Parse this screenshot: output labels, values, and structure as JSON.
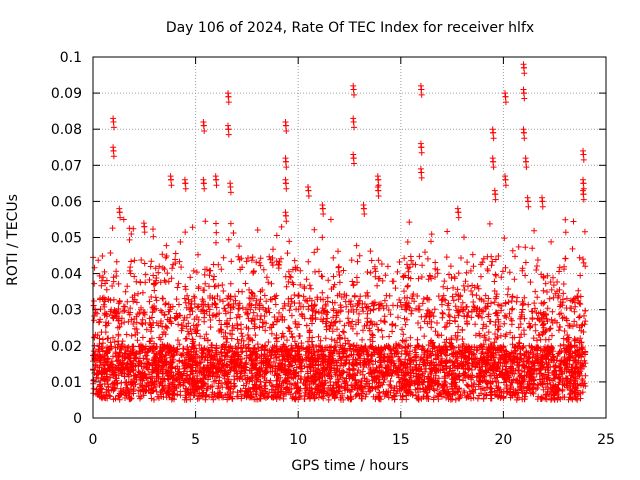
{
  "chart_data": {
    "type": "scatter",
    "title": "Day 106 of 2024, Rate Of TEC Index for receiver hlfx",
    "xlabel": "GPS time / hours",
    "ylabel": "ROTI / TECUs",
    "xlim": [
      0,
      25
    ],
    "ylim": [
      0,
      0.1
    ],
    "xticks": [
      0,
      5,
      10,
      15,
      20,
      25
    ],
    "xtick_labels": [
      "0",
      "5",
      "10",
      "15",
      "20",
      "25"
    ],
    "yticks": [
      0,
      0.01,
      0.02,
      0.03,
      0.04,
      0.05,
      0.06,
      0.07,
      0.08,
      0.09,
      0.1
    ],
    "ytick_labels": [
      "0",
      "0.01",
      "0.02",
      "0.03",
      "0.04",
      "0.05",
      "0.06",
      "0.07",
      "0.08",
      "0.09",
      "0.1"
    ],
    "grid": true,
    "marker": "+",
    "color": "#ff0000",
    "data_extent_x": [
      0,
      24
    ],
    "baseline_range": [
      0.005,
      0.02
    ],
    "spikes": [
      {
        "x": 1.0,
        "y": 0.082
      },
      {
        "x": 1.0,
        "y": 0.074
      },
      {
        "x": 1.3,
        "y": 0.057
      },
      {
        "x": 2.5,
        "y": 0.053
      },
      {
        "x": 3.8,
        "y": 0.066
      },
      {
        "x": 4.5,
        "y": 0.065
      },
      {
        "x": 5.4,
        "y": 0.081
      },
      {
        "x": 5.4,
        "y": 0.065
      },
      {
        "x": 6.0,
        "y": 0.066
      },
      {
        "x": 6.6,
        "y": 0.089
      },
      {
        "x": 6.6,
        "y": 0.08
      },
      {
        "x": 6.7,
        "y": 0.064
      },
      {
        "x": 9.4,
        "y": 0.081
      },
      {
        "x": 9.4,
        "y": 0.071
      },
      {
        "x": 9.4,
        "y": 0.065
      },
      {
        "x": 9.4,
        "y": 0.056
      },
      {
        "x": 10.5,
        "y": 0.063
      },
      {
        "x": 11.2,
        "y": 0.058
      },
      {
        "x": 12.7,
        "y": 0.091
      },
      {
        "x": 12.7,
        "y": 0.082
      },
      {
        "x": 12.7,
        "y": 0.072
      },
      {
        "x": 13.2,
        "y": 0.058
      },
      {
        "x": 13.9,
        "y": 0.066
      },
      {
        "x": 13.9,
        "y": 0.063
      },
      {
        "x": 16.0,
        "y": 0.091
      },
      {
        "x": 16.0,
        "y": 0.075
      },
      {
        "x": 16.0,
        "y": 0.068
      },
      {
        "x": 17.8,
        "y": 0.057
      },
      {
        "x": 19.5,
        "y": 0.079
      },
      {
        "x": 19.5,
        "y": 0.071
      },
      {
        "x": 19.6,
        "y": 0.062
      },
      {
        "x": 20.1,
        "y": 0.089
      },
      {
        "x": 20.1,
        "y": 0.066
      },
      {
        "x": 21.0,
        "y": 0.097
      },
      {
        "x": 21.0,
        "y": 0.09
      },
      {
        "x": 21.0,
        "y": 0.079
      },
      {
        "x": 21.1,
        "y": 0.071
      },
      {
        "x": 21.2,
        "y": 0.06
      },
      {
        "x": 21.9,
        "y": 0.06
      },
      {
        "x": 23.9,
        "y": 0.073
      },
      {
        "x": 23.9,
        "y": 0.065
      },
      {
        "x": 23.9,
        "y": 0.062
      }
    ]
  }
}
